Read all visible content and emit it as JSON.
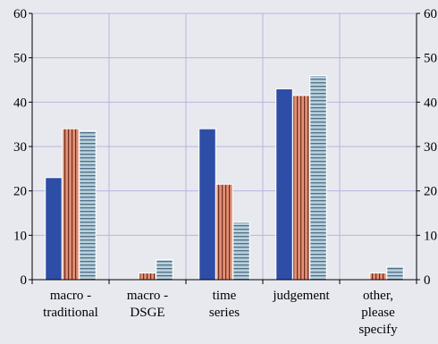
{
  "chart_data": {
    "type": "bar",
    "title": "",
    "xlabel": "",
    "ylabel": "",
    "categories": [
      [
        "macro -",
        "traditional"
      ],
      [
        "macro -",
        "DSGE"
      ],
      [
        "time",
        "series"
      ],
      [
        "judgement"
      ],
      [
        "other,",
        "please",
        "specify"
      ]
    ],
    "series": [
      {
        "values": [
          23,
          0,
          34,
          43,
          0
        ]
      },
      {
        "values": [
          34,
          1.5,
          21.5,
          41.5,
          1.5
        ]
      },
      {
        "values": [
          33.5,
          4.5,
          13,
          46,
          3
        ]
      }
    ],
    "ylim": [
      0,
      60
    ],
    "yticks": [
      0,
      10,
      20,
      30,
      40,
      50,
      60
    ],
    "right_yticks": [
      "0",
      "10",
      "20",
      "30",
      "40",
      "50",
      "60"
    ],
    "grid": true,
    "legend": "none"
  },
  "colors": {
    "background": "#e8e8ef",
    "grid": "#b6b6e0",
    "axis": "#000000",
    "series": [
      "#2e4da7",
      "#e19074",
      "#b8d0dc"
    ],
    "series_pattern": [
      "#2e4da7",
      "#6e2d20",
      "#4f6f87"
    ]
  }
}
